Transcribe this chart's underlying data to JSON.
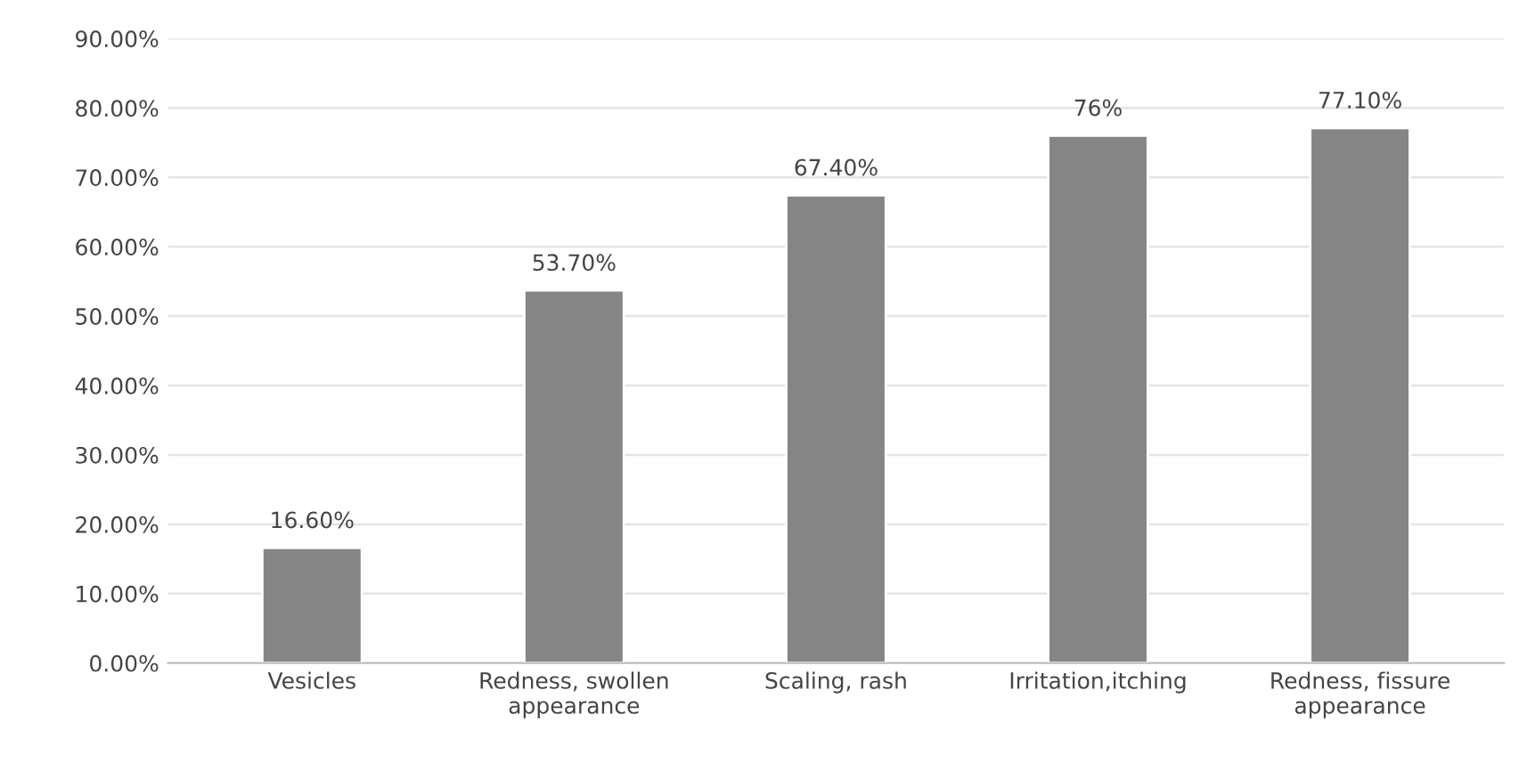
{
  "chart_data": {
    "type": "bar",
    "categories": [
      "Vesicles",
      "Redness, swollen\nappearance",
      "Scaling, rash",
      "Irritation,itching",
      "Redness, fissure\nappearance"
    ],
    "values": [
      16.6,
      53.7,
      67.4,
      76,
      77.1
    ],
    "value_labels": [
      "16.60%",
      "53.70%",
      "67.40%",
      "76%",
      "77.10%"
    ],
    "color": "#858585",
    "ylim": [
      0,
      90
    ],
    "yticks": [
      {
        "value": 0,
        "label": "0.00%"
      },
      {
        "value": 10,
        "label": "10.00%"
      },
      {
        "value": 20,
        "label": "20.00%"
      },
      {
        "value": 30,
        "label": "30.00%"
      },
      {
        "value": 40,
        "label": "40.00%"
      },
      {
        "value": 50,
        "label": "50.00%"
      },
      {
        "value": 60,
        "label": "60.00%"
      },
      {
        "value": 70,
        "label": "70.00%"
      },
      {
        "value": 80,
        "label": "80.00%"
      },
      {
        "value": 90,
        "label": "90.00%"
      }
    ],
    "grid": "y",
    "legend": false
  }
}
